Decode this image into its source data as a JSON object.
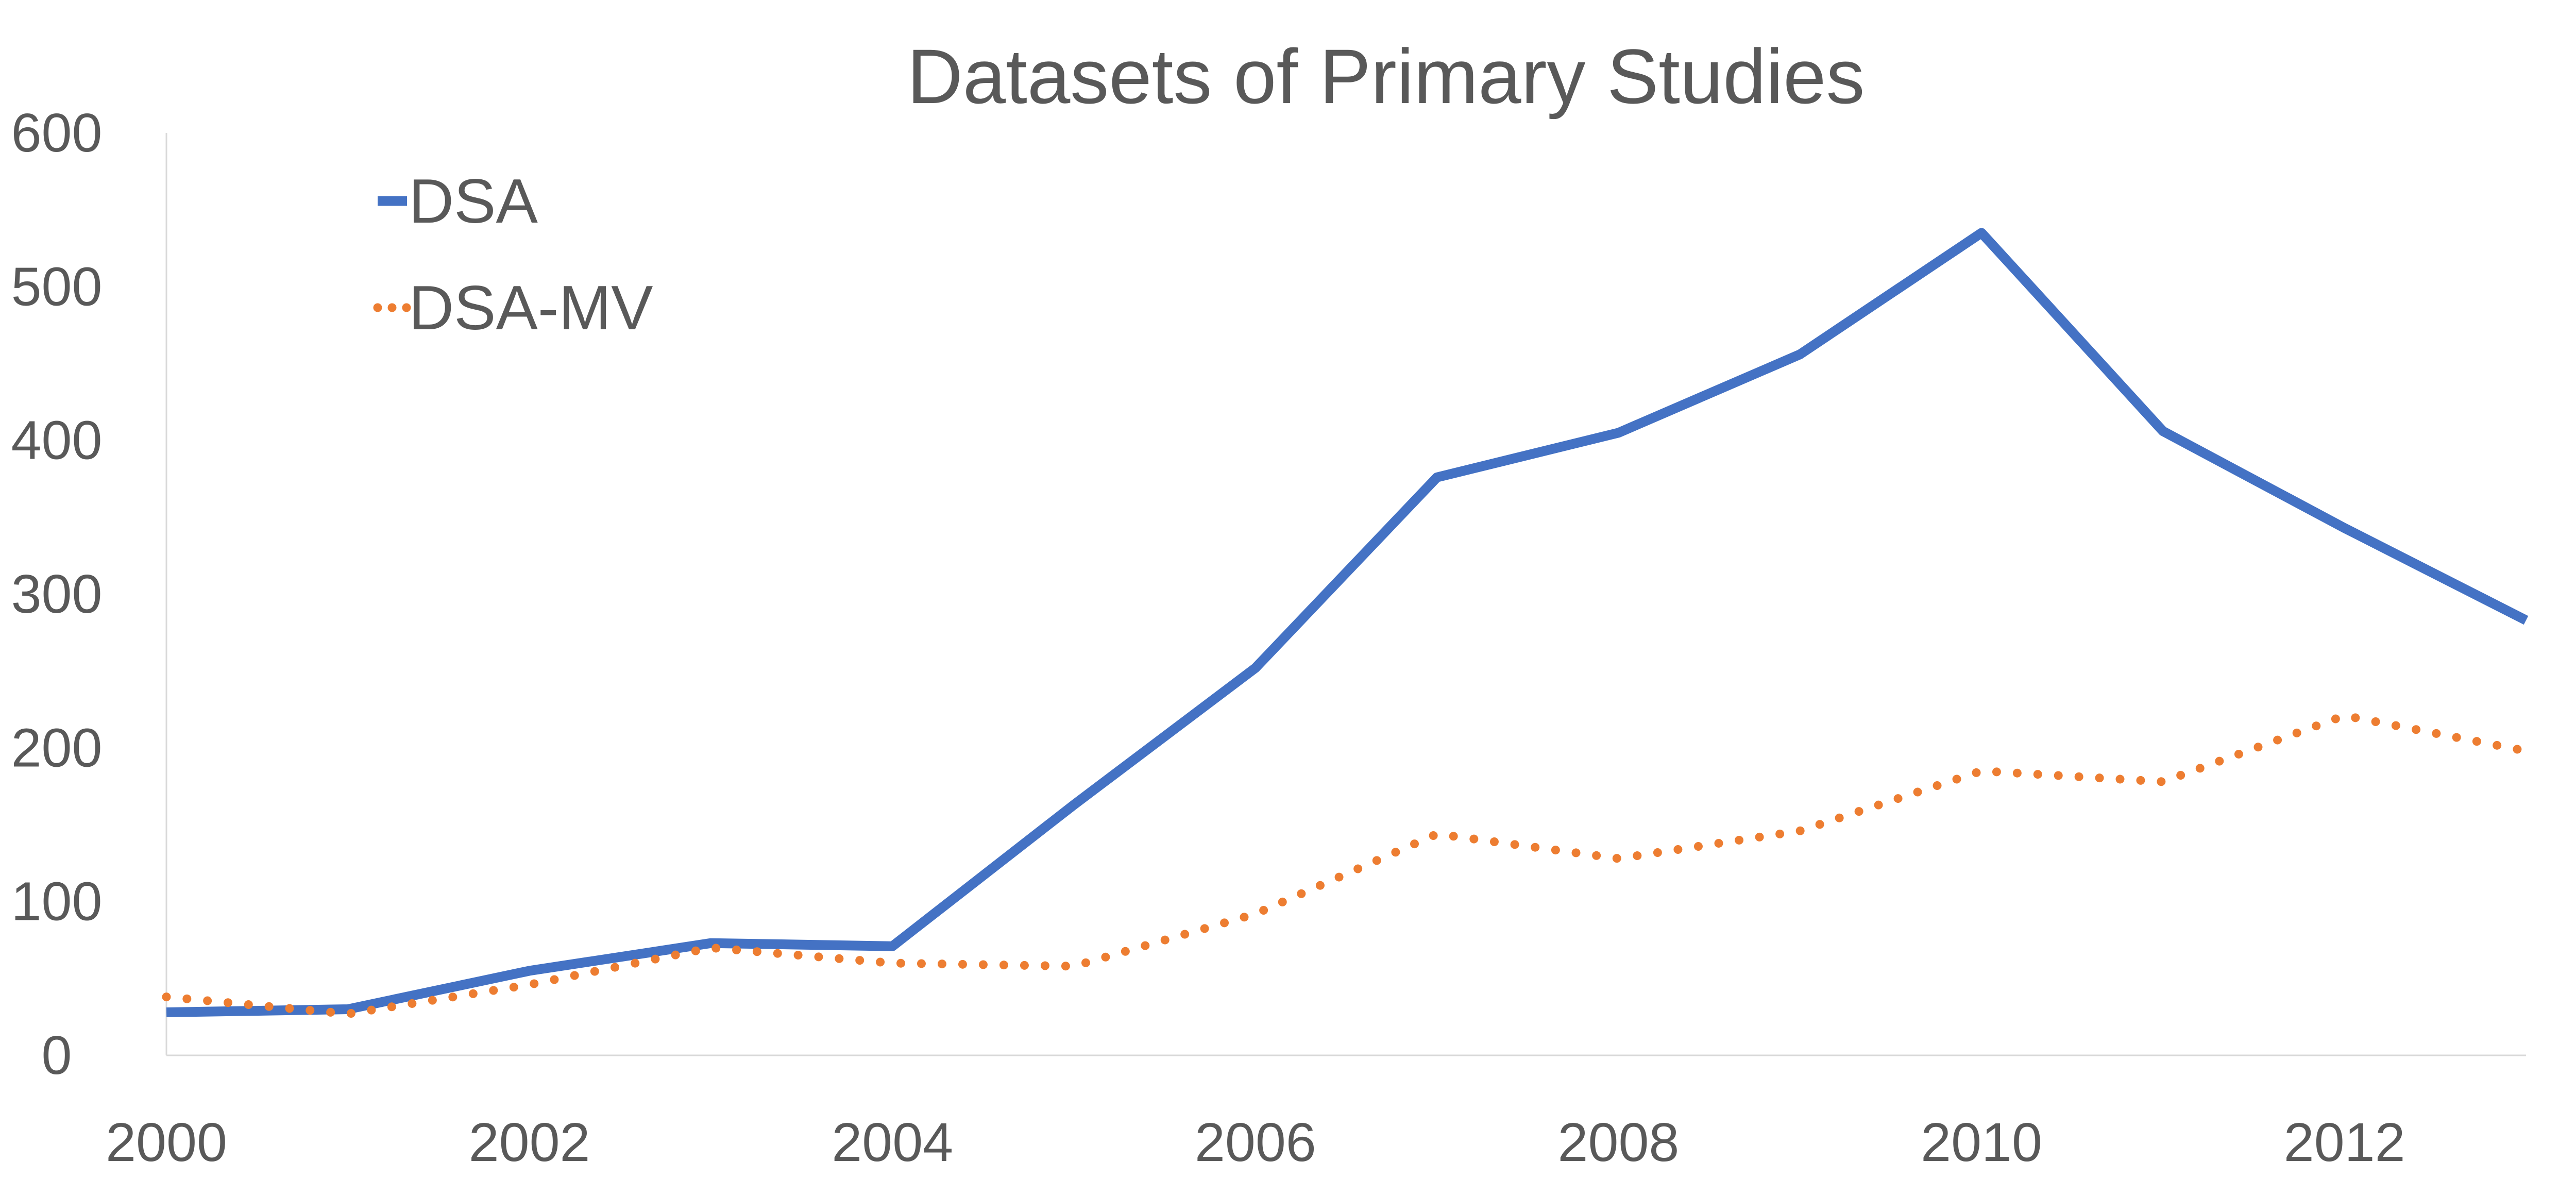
{
  "chart_data": {
    "type": "line",
    "title": "Datasets of Primary Studies",
    "xlabel": "",
    "ylabel": "",
    "x": [
      2000,
      2001,
      2002,
      2003,
      2004,
      2005,
      2006,
      2007,
      2008,
      2009,
      2010,
      2011,
      2012,
      2013
    ],
    "x_ticks": [
      "2000",
      "2002",
      "2004",
      "2006",
      "2008",
      "2010",
      "2012"
    ],
    "y_ticks": [
      "0",
      "100",
      "200",
      "300",
      "400",
      "500",
      "600"
    ],
    "xlim": [
      2000,
      2013
    ],
    "ylim": [
      0,
      600
    ],
    "grid": false,
    "legend": "top-left",
    "series": [
      {
        "name": "DSA",
        "color": "#4472C4",
        "style": "solid",
        "values": [
          28,
          30,
          55,
          73,
          71,
          163,
          252,
          376,
          405,
          456,
          535,
          406,
          343,
          283
        ]
      },
      {
        "name": "DSA-MV",
        "color": "#ED7D31",
        "style": "dotted",
        "values": [
          38,
          27,
          46,
          70,
          60,
          58,
          92,
          144,
          128,
          146,
          185,
          178,
          221,
          198
        ]
      }
    ]
  }
}
